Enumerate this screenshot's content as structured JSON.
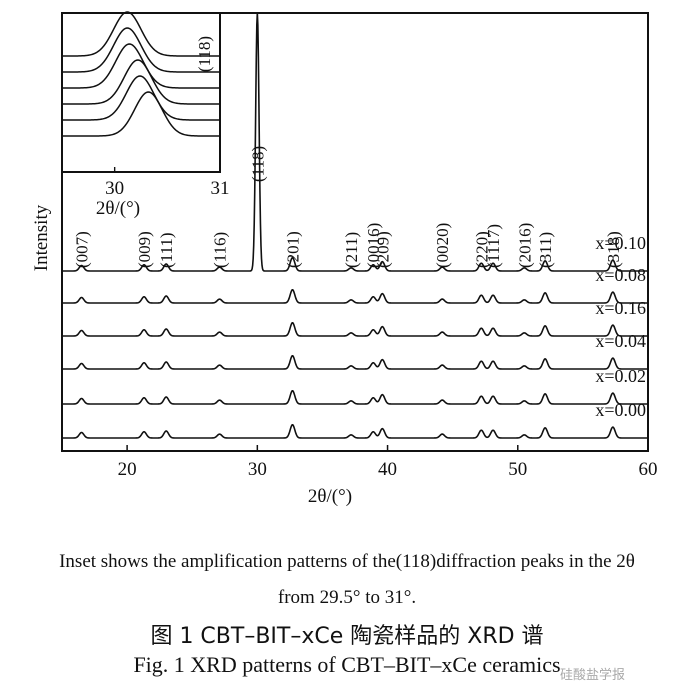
{
  "chart_data": [
    {
      "type": "line",
      "xlabel": "2θ/(°)",
      "ylabel": "Intensity",
      "xlim": [
        15,
        60
      ],
      "x_ticks": [
        20,
        30,
        40,
        50,
        60
      ],
      "series": [
        {
          "name": "x=0.10"
        },
        {
          "name": "x=0.08"
        },
        {
          "name": "x=0.16"
        },
        {
          "name": "x=0.04"
        },
        {
          "name": "x=0.02"
        },
        {
          "name": "x=0.00"
        }
      ],
      "peaks": [
        {
          "label": "(007)",
          "x": 16.5,
          "h": 0.07
        },
        {
          "label": "(009)",
          "x": 21.3,
          "h": 0.08
        },
        {
          "label": "(111)",
          "x": 23.0,
          "h": 0.09
        },
        {
          "label": "(116)",
          "x": 27.1,
          "h": 0.05
        },
        {
          "label": "(118)",
          "x": 30.0,
          "h": 1.0
        },
        {
          "label": "(201)",
          "x": 32.7,
          "h": 0.17
        },
        {
          "label": "(211)",
          "x": 37.2,
          "h": 0.04
        },
        {
          "label": "(0016)",
          "x": 38.9,
          "h": 0.08
        },
        {
          "label": "(209)",
          "x": 39.6,
          "h": 0.12
        },
        {
          "label": "(0020)",
          "x": 44.2,
          "h": 0.05
        },
        {
          "label": "(220)",
          "x": 47.2,
          "h": 0.1
        },
        {
          "label": "(1117)",
          "x": 48.1,
          "h": 0.1
        },
        {
          "label": "(2016)",
          "x": 50.5,
          "h": 0.04
        },
        {
          "label": "(311)",
          "x": 52.1,
          "h": 0.13
        },
        {
          "label": "(318)",
          "x": 57.3,
          "h": 0.14
        }
      ]
    },
    {
      "type": "line",
      "role": "inset",
      "xlabel": "2θ/(°)",
      "xlim": [
        29.5,
        31
      ],
      "x_ticks": [
        30,
        31
      ],
      "annotation": "(118)",
      "peak_positions": [
        30.12,
        30.12,
        30.14,
        30.22,
        30.24,
        30.32
      ]
    }
  ],
  "captions": {
    "inset_note_line1": "Inset shows the amplification patterns of the(118)diffraction peaks in the 2θ",
    "inset_note_line2": "from 29.5° to 31°.",
    "cn": "图 1    CBT–BIT–xCe 陶瓷样品的 XRD 谱",
    "en": "Fig. 1    XRD patterns of CBT–BIT–xCe ceramics"
  },
  "watermark": "硅酸盐学报"
}
